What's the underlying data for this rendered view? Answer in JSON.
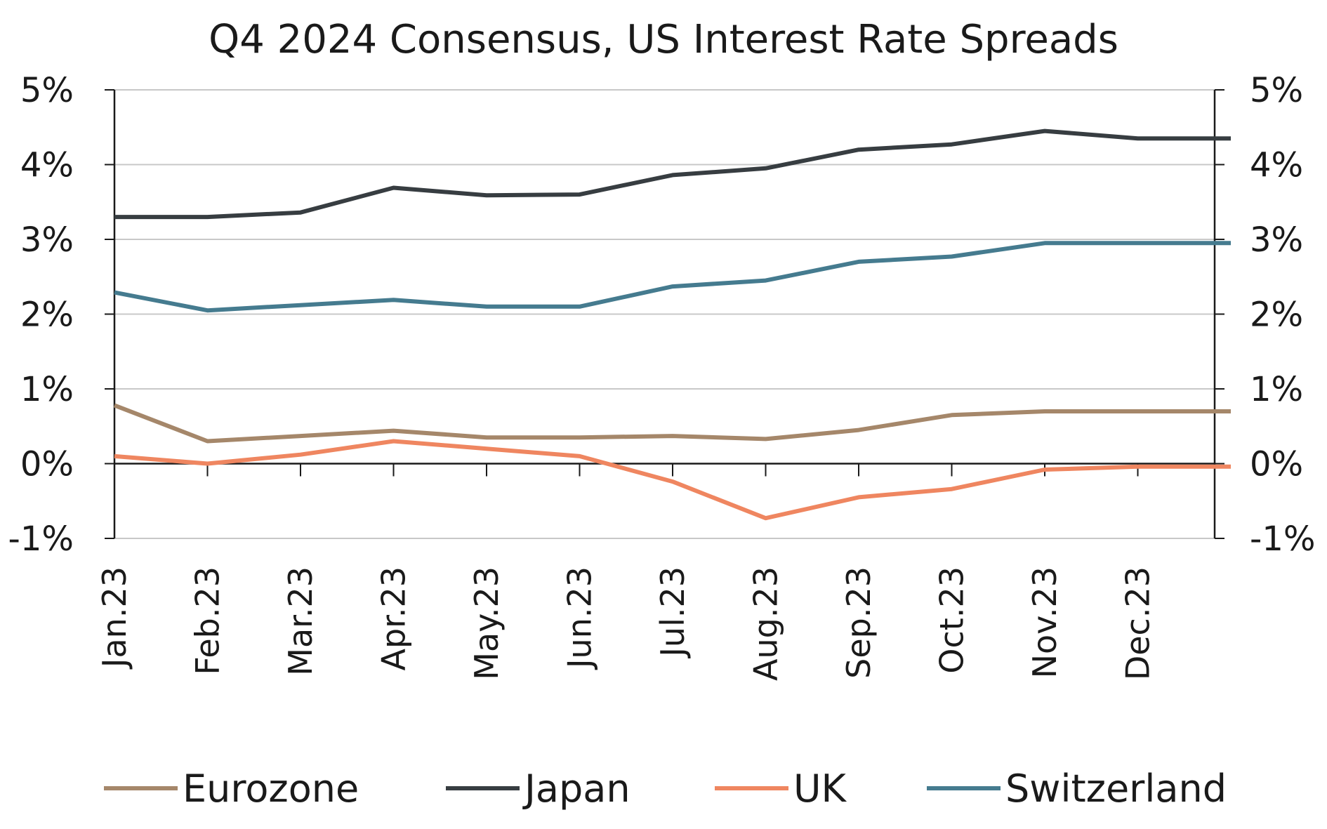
{
  "chart_data": {
    "type": "line",
    "title": "Q4 2024 Consensus, US Interest Rate Spreads",
    "categories": [
      "Jan.23",
      "Feb.23",
      "Mar.23",
      "Apr.23",
      "May.23",
      "Jun.23",
      "Jul.23",
      "Aug.23",
      "Sep.23",
      "Oct.23",
      "Nov.23",
      "Dec.23",
      "Dec.23"
    ],
    "x_tick_labels": [
      "Jan.23",
      "Feb.23",
      "Mar.23",
      "Apr.23",
      "May.23",
      "Jun.23",
      "Jul.23",
      "Aug.23",
      "Sep.23",
      "Oct.23",
      "Nov.23",
      "Dec.23"
    ],
    "y_ticks": [
      "-1%",
      "0%",
      "1%",
      "2%",
      "3%",
      "4%",
      "5%"
    ],
    "y2_ticks": [
      "-1%",
      "0%",
      "1%",
      "2%",
      "3%",
      "4%",
      "5%"
    ],
    "ylim": [
      -1,
      5
    ],
    "grid": true,
    "legend_position": "bottom",
    "series": [
      {
        "name": "Eurozone",
        "color": "#a5876a",
        "values": [
          0.78,
          0.3,
          0.37,
          0.44,
          0.35,
          0.35,
          0.37,
          0.33,
          0.45,
          0.65,
          0.7,
          0.7,
          0.7
        ]
      },
      {
        "name": "Japan",
        "color": "#373d41",
        "values": [
          3.3,
          3.3,
          3.36,
          3.69,
          3.59,
          3.6,
          3.86,
          3.95,
          4.2,
          4.27,
          4.45,
          4.35,
          4.35
        ]
      },
      {
        "name": "UK",
        "color": "#ef8660",
        "values": [
          0.1,
          0.0,
          0.12,
          0.3,
          0.2,
          0.1,
          -0.24,
          -0.73,
          -0.45,
          -0.34,
          -0.08,
          -0.04,
          -0.04
        ]
      },
      {
        "name": "Switzerland",
        "color": "#457b8f",
        "values": [
          2.29,
          2.05,
          2.12,
          2.19,
          2.1,
          2.1,
          2.37,
          2.45,
          2.7,
          2.77,
          2.95,
          2.95,
          2.95
        ]
      }
    ]
  }
}
